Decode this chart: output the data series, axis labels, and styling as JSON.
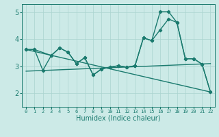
{
  "xlabel": "Humidex (Indice chaleur)",
  "background_color": "#cceae7",
  "grid_color": "#aad4d0",
  "line_color": "#1a7a6e",
  "xlim": [
    -0.5,
    22.5
  ],
  "ylim": [
    1.5,
    5.3
  ],
  "yticks": [
    2,
    3,
    4,
    5
  ],
  "xticks": [
    0,
    1,
    2,
    3,
    4,
    5,
    6,
    7,
    8,
    9,
    10,
    11,
    12,
    13,
    14,
    15,
    16,
    17,
    18,
    19,
    20,
    21,
    22
  ],
  "series1_x": [
    0,
    1,
    2,
    3,
    4,
    5,
    6,
    7,
    8,
    9,
    10,
    11,
    12,
    13,
    14,
    15,
    16,
    17,
    18,
    19,
    20,
    21,
    22
  ],
  "series1_y": [
    3.62,
    3.62,
    2.85,
    3.4,
    3.68,
    3.52,
    3.1,
    3.32,
    2.68,
    2.9,
    2.97,
    3.02,
    2.97,
    3.02,
    4.05,
    3.95,
    4.35,
    4.75,
    4.62,
    3.28,
    3.28,
    3.08,
    2.05
  ],
  "series2_x": [
    0,
    1,
    3,
    4,
    5,
    6,
    7,
    8,
    9,
    10,
    11,
    12,
    13,
    14,
    15,
    16,
    17,
    18,
    19,
    20,
    21,
    22
  ],
  "series2_y": [
    3.62,
    3.62,
    3.4,
    3.68,
    3.52,
    3.1,
    3.32,
    2.68,
    2.9,
    2.97,
    3.02,
    2.97,
    3.02,
    4.05,
    3.95,
    5.02,
    5.02,
    4.62,
    3.28,
    3.28,
    3.08,
    2.05
  ],
  "series3_x": [
    0,
    22
  ],
  "series3_y": [
    3.62,
    2.05
  ],
  "series4_x": [
    0,
    22
  ],
  "series4_y": [
    2.82,
    3.1
  ]
}
